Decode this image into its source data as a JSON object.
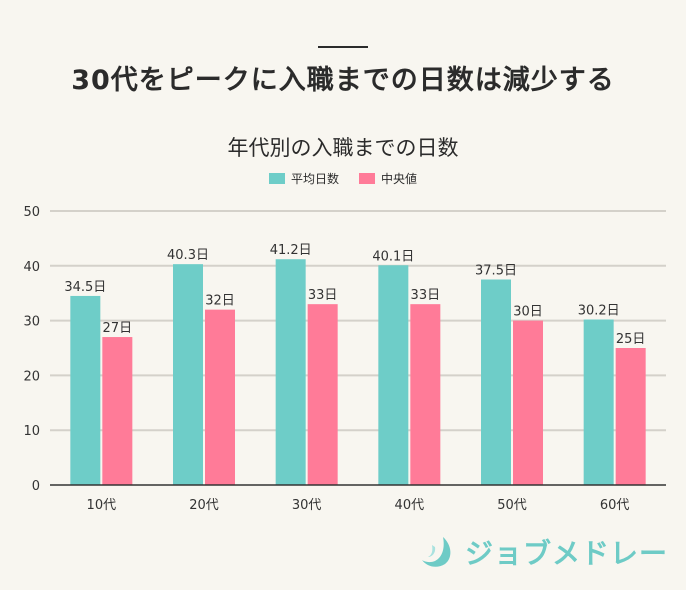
{
  "headline": "30代をピークに入職までの日数は減少する",
  "brand": {
    "name": "ジョブメドレー",
    "color": "#6ecbc6"
  },
  "chart_data": {
    "type": "bar",
    "title": "年代別の入職までの日数",
    "categories": [
      "10代",
      "20代",
      "30代",
      "40代",
      "50代",
      "60代"
    ],
    "series": [
      {
        "name": "平均日数",
        "color": "#6ecdc8",
        "values": [
          34.5,
          40.3,
          41.2,
          40.1,
          37.5,
          30.2
        ],
        "labels": [
          "34.5日",
          "40.3日",
          "41.2日",
          "40.1日",
          "37.5日",
          "30.2日"
        ]
      },
      {
        "name": "中央値",
        "color": "#ff7b98",
        "values": [
          27,
          32,
          33,
          33,
          30,
          25
        ],
        "labels": [
          "27日",
          "32日",
          "33日",
          "33日",
          "30日",
          "25日"
        ]
      }
    ],
    "ylim": [
      0,
      50
    ],
    "yticks": [
      0,
      10,
      20,
      30,
      40,
      50
    ],
    "grid": true,
    "legend_position": "top-center"
  }
}
